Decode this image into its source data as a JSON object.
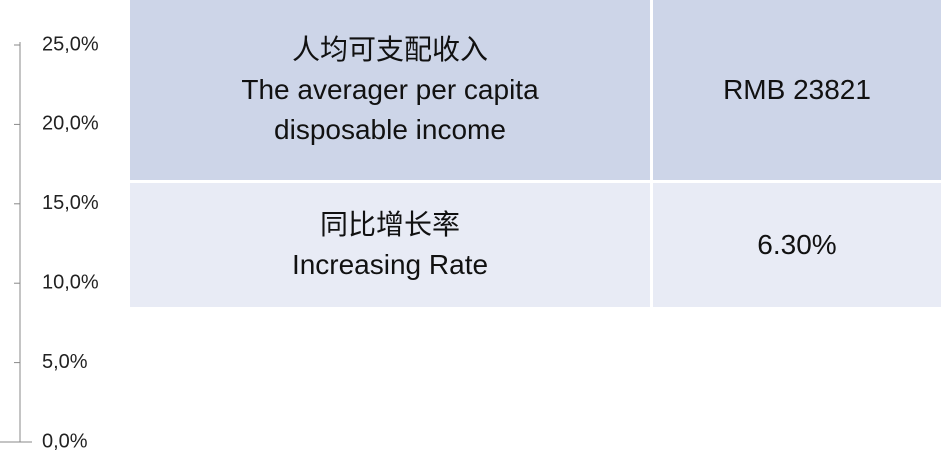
{
  "axis": {
    "ylim": [
      0,
      25
    ],
    "yticks": [
      {
        "value": 0,
        "label": "0,0%"
      },
      {
        "value": 5,
        "label": "5,0%"
      },
      {
        "value": 10,
        "label": "10,0%"
      },
      {
        "value": 15,
        "label": "15,0%"
      },
      {
        "value": 20,
        "label": "20,0%"
      },
      {
        "value": 25,
        "label": "25,0%"
      }
    ]
  },
  "table": {
    "rows": [
      [
        [
          "人均可支配收入",
          "The averager per capita",
          "disposable income"
        ],
        [
          "RMB 23821"
        ]
      ],
      [
        [
          "同比增长率",
          "Increasing Rate"
        ],
        [
          "6.30%"
        ]
      ]
    ]
  }
}
